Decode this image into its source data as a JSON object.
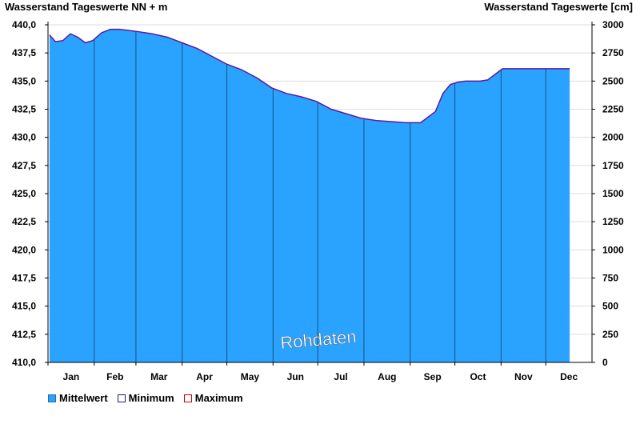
{
  "chart_data": {
    "type": "area",
    "title_left": "Wasserstand Tageswerte NN + m",
    "title_right": "Wasserstand Tageswerte [cm]",
    "watermark": "Rohdaten",
    "y_left": {
      "min": 410.0,
      "max": 440.0,
      "ticks": [
        "410,0",
        "412,5",
        "415,0",
        "417,5",
        "420,0",
        "422,5",
        "425,0",
        "427,5",
        "430,0",
        "432,5",
        "435,0",
        "437,5",
        "440,0"
      ]
    },
    "y_right": {
      "min": 0,
      "max": 3000,
      "ticks": [
        "0",
        "250",
        "500",
        "750",
        "1000",
        "1250",
        "1500",
        "1750",
        "2000",
        "2250",
        "2500",
        "2750",
        "3000"
      ]
    },
    "months": [
      "Jan",
      "Feb",
      "Mar",
      "Apr",
      "May",
      "Jun",
      "Jul",
      "Aug",
      "Sep",
      "Oct",
      "Nov",
      "Dec"
    ],
    "grid": true,
    "legend_position": "bottom-left",
    "colors": {
      "fill": "#29a3ff",
      "line": "#5a1a9a",
      "grid": "#dddddd",
      "axis": "#000000",
      "month_line": "#1a5276"
    },
    "series": [
      {
        "name": "Mittelwert",
        "x": [
          1,
          5,
          10,
          15,
          20,
          25,
          30,
          36,
          42,
          48,
          54,
          60,
          70,
          80,
          90,
          100,
          110,
          120,
          130,
          140,
          150,
          160,
          170,
          180,
          190,
          200,
          210,
          220,
          230,
          240,
          250,
          260,
          265,
          270,
          275,
          280,
          285,
          290,
          295,
          300,
          305,
          310,
          315,
          320,
          325,
          330,
          335,
          340,
          345,
          350
        ],
        "values": [
          439.1,
          438.5,
          438.6,
          439.2,
          438.9,
          438.4,
          438.6,
          439.3,
          439.6,
          439.6,
          439.5,
          439.4,
          439.2,
          438.9,
          438.4,
          437.9,
          437.2,
          436.5,
          436.0,
          435.3,
          434.4,
          433.9,
          433.6,
          433.2,
          432.5,
          432.1,
          431.7,
          431.5,
          431.4,
          431.3,
          431.3,
          432.3,
          433.9,
          434.7,
          434.9,
          435.0,
          435.0,
          435.0,
          435.1,
          435.6,
          436.1,
          436.1,
          436.1,
          436.1,
          436.1,
          436.1,
          436.1,
          436.1,
          436.1,
          436.1
        ]
      },
      {
        "name": "Minimum"
      },
      {
        "name": "Maximum"
      }
    ]
  },
  "legend": [
    {
      "label": "Mittelwert",
      "fill": "#29a3ff",
      "border": "#1f6fb0"
    },
    {
      "label": "Minimum",
      "fill": "#ffffff",
      "border": "#1a1a8a"
    },
    {
      "label": "Maximum",
      "fill": "#ffffff",
      "border": "#cc0000"
    }
  ]
}
